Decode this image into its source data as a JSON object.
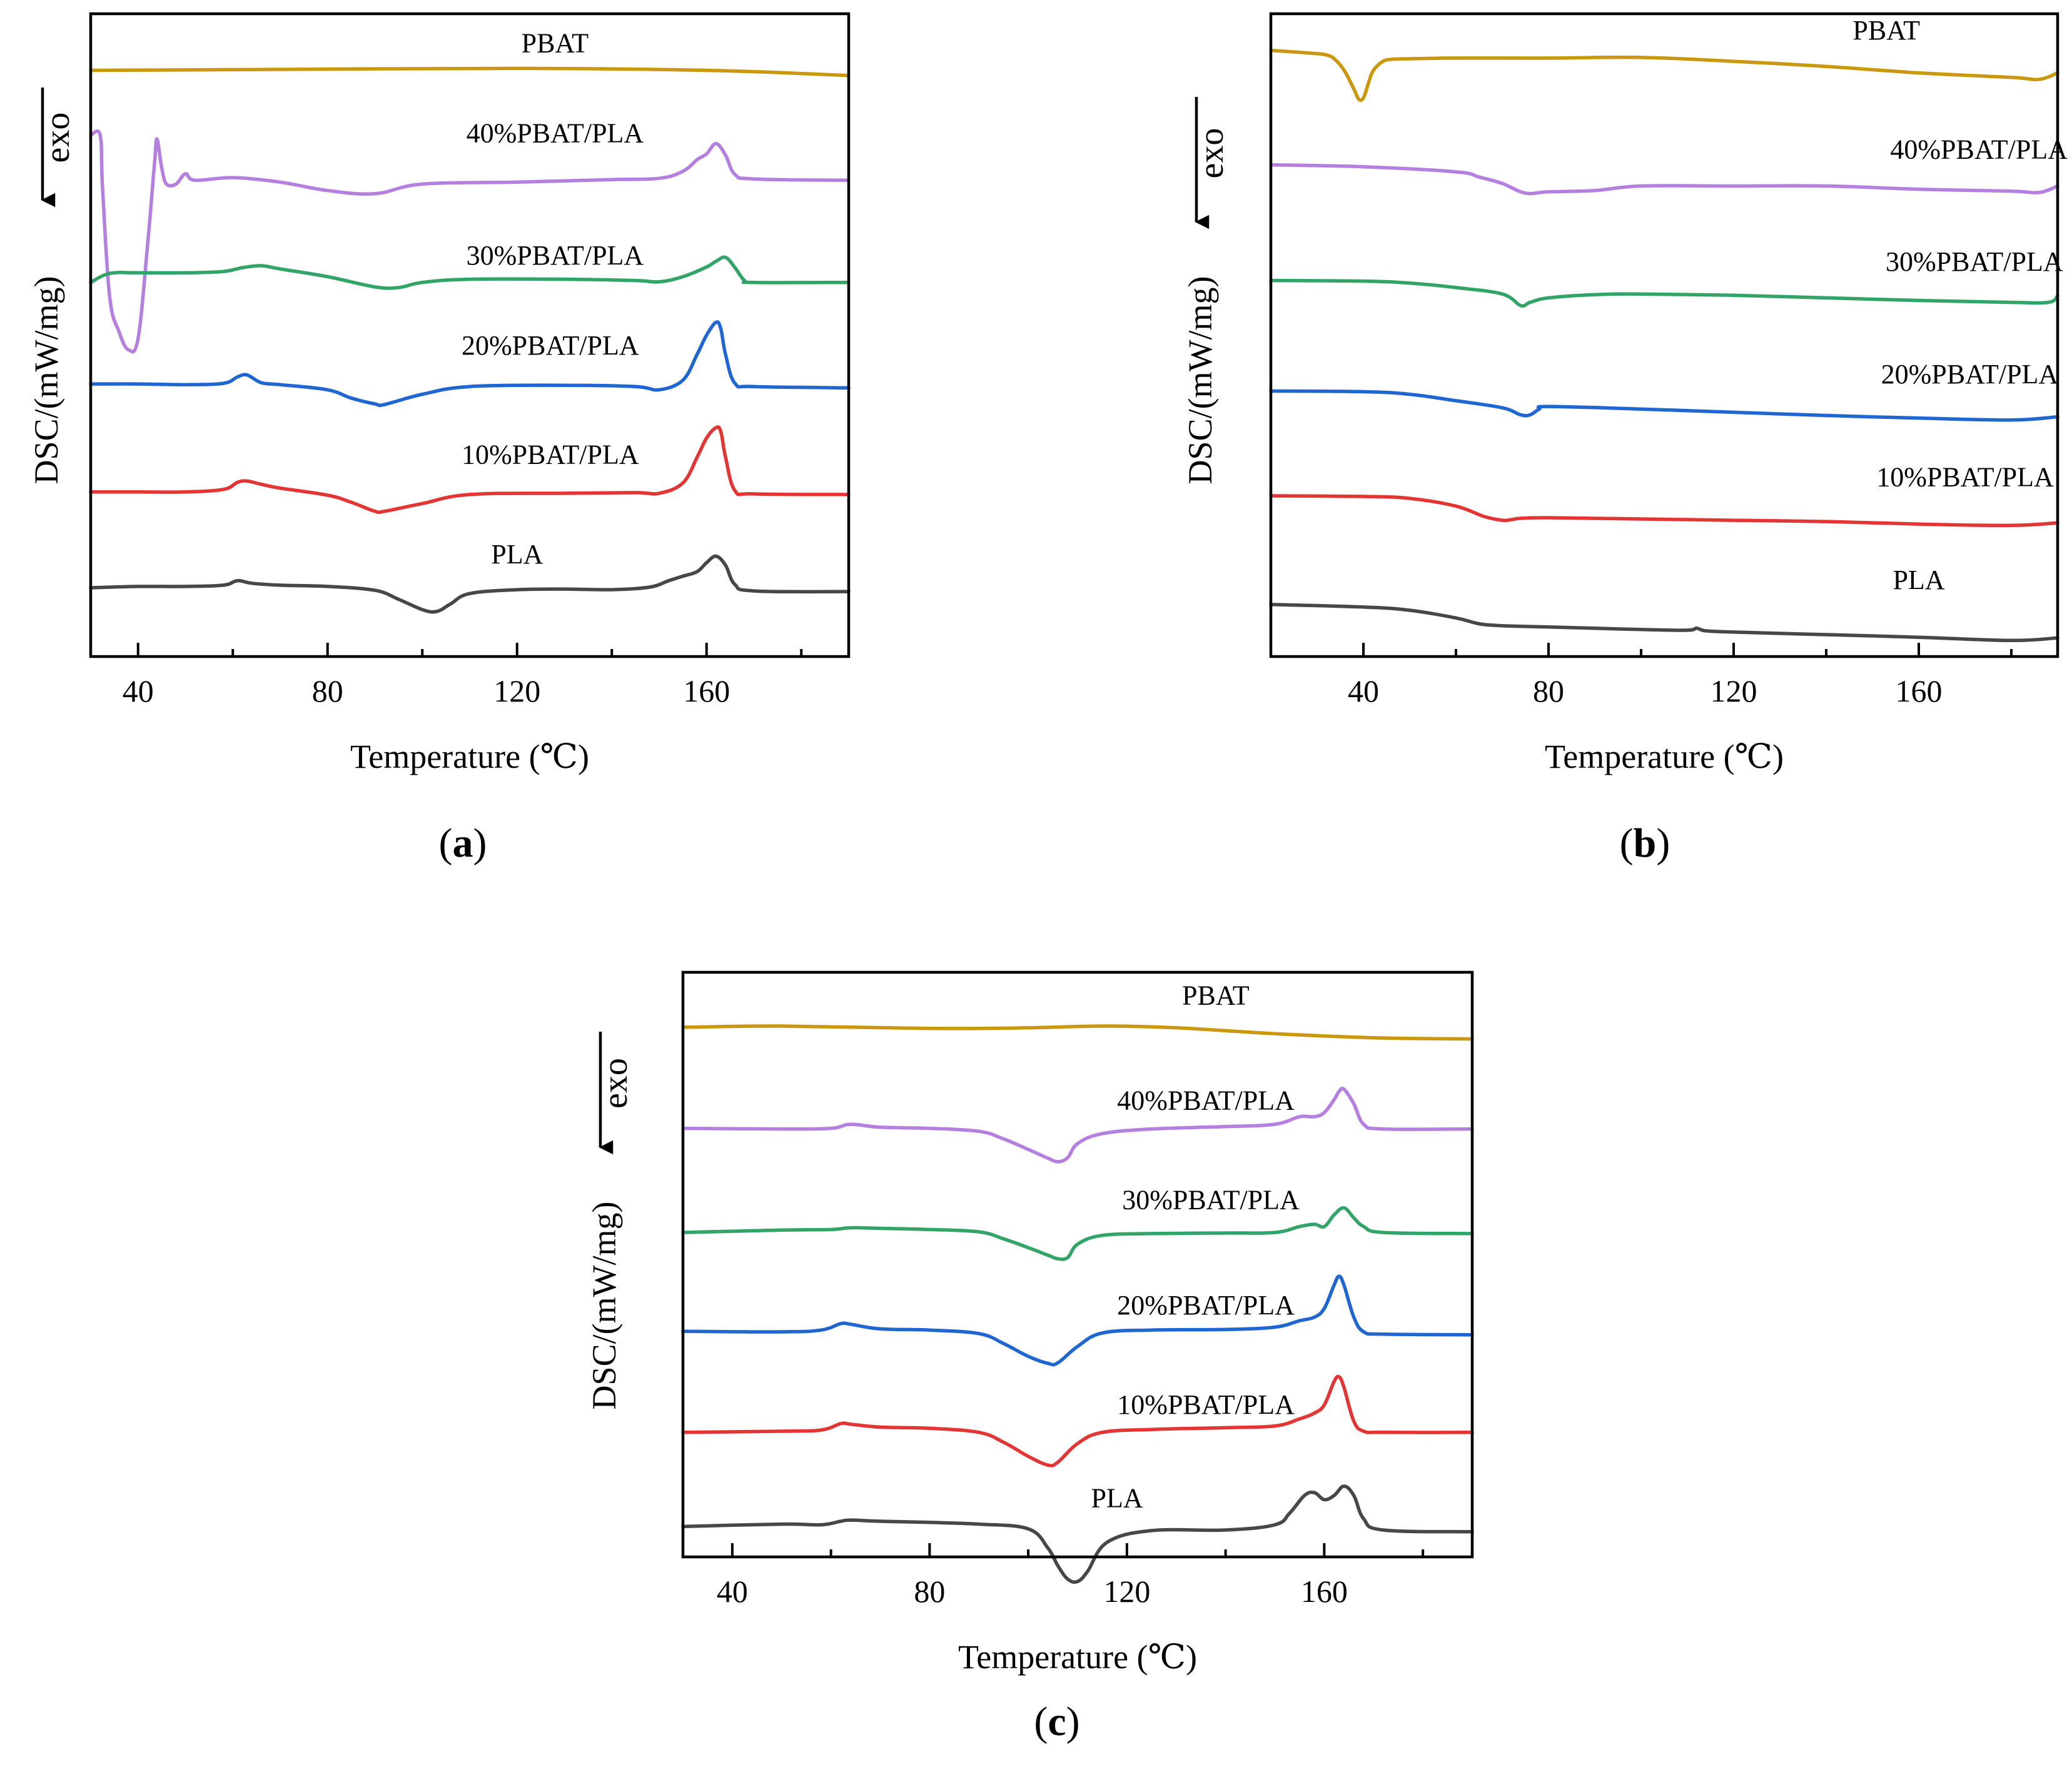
{
  "colors": {
    "PBAT": "#c9980f",
    "40%PBAT/PLA": "#b57fe0",
    "30%PBAT/PLA": "#33a467",
    "20%PBAT/PLA": "#1f66d0",
    "10%PBAT/PLA": "#e43535",
    "PLA": "#474747"
  },
  "chart_data": [
    {
      "id": "a",
      "panel_label": "a",
      "type": "line",
      "xlabel": "Temperature (℃)",
      "ylabel": "DSC/(mW/mg)",
      "exo_label": "exo",
      "exo_direction": "down",
      "xlim": [
        30,
        190
      ],
      "ylim": [
        0,
        100
      ],
      "major_ticks": [
        40,
        80,
        120,
        160
      ],
      "tick_labels": [
        "40",
        "80",
        "120",
        "160"
      ],
      "minor_ticks": [
        60,
        100,
        140,
        180
      ],
      "series": [
        {
          "name": "PBAT",
          "label_x": 128,
          "label_y": 94,
          "x": [
            30,
            60,
            120,
            160,
            190
          ],
          "y": [
            91.2,
            91.3,
            91.5,
            91.2,
            90.4
          ]
        },
        {
          "name": "40%PBAT/PLA",
          "label_x": 128,
          "label_y": 80,
          "x": [
            30,
            32,
            32.5,
            34,
            36,
            38,
            40,
            42,
            43.5,
            44,
            45,
            46,
            48,
            50,
            52,
            60,
            70,
            80,
            90,
            100,
            120,
            140,
            150,
            155,
            158,
            160,
            162,
            164,
            166,
            170,
            190
          ],
          "y": [
            81.1,
            81.1,
            73,
            56,
            50.5,
            47.7,
            49.5,
            64,
            77,
            80.5,
            76,
            73.5,
            73.5,
            75.1,
            74.1,
            74.5,
            73.8,
            72.5,
            72,
            73.5,
            73.8,
            74.2,
            74.4,
            75.5,
            77.3,
            78.2,
            79.8,
            78,
            75,
            74.3,
            74.1
          ]
        },
        {
          "name": "30%PBAT/PLA",
          "label_x": 128,
          "label_y": 61,
          "x": [
            30,
            34,
            40,
            50,
            58,
            62,
            66,
            70,
            80,
            90,
            95,
            100,
            110,
            130,
            145,
            150,
            155,
            160,
            162,
            164,
            166,
            168,
            170,
            190
          ],
          "y": [
            58.2,
            59.6,
            59.7,
            59.7,
            59.9,
            60.5,
            60.8,
            60.3,
            59.1,
            57.5,
            57.4,
            58.2,
            58.7,
            58.7,
            58.5,
            58.3,
            59.1,
            60.6,
            61.5,
            62.1,
            60.5,
            58.5,
            58.2,
            58.2
          ]
        },
        {
          "name": "20%PBAT/PLA",
          "label_x": 127,
          "label_y": 47,
          "x": [
            30,
            40,
            50,
            58,
            61,
            63,
            66,
            70,
            80,
            85,
            90,
            92,
            100,
            110,
            130,
            145,
            150,
            155,
            158,
            160,
            162,
            163,
            164,
            166,
            170,
            190
          ],
          "y": [
            42.4,
            42.4,
            42.3,
            42.5,
            43.5,
            43.8,
            42.6,
            42.3,
            41.5,
            40.2,
            39.3,
            39.2,
            40.8,
            42,
            42.2,
            42,
            41.5,
            43,
            47,
            50,
            52,
            51,
            47,
            42.5,
            42,
            41.8
          ]
        },
        {
          "name": "10%PBAT/PLA",
          "label_x": 127,
          "label_y": 30,
          "x": [
            30,
            40,
            50,
            58,
            61,
            63,
            66,
            70,
            80,
            85,
            90,
            92,
            100,
            110,
            130,
            145,
            150,
            155,
            158,
            160,
            162,
            163,
            164,
            166,
            170,
            190
          ],
          "y": [
            25.6,
            25.6,
            25.6,
            26,
            27.1,
            27.3,
            26.8,
            26.2,
            25.1,
            24,
            22.6,
            22.6,
            23.8,
            25.2,
            25.4,
            25.5,
            25.4,
            27,
            31,
            34,
            35.6,
            35,
            31,
            25.8,
            25.3,
            25.2
          ]
        },
        {
          "name": "PLA",
          "label_x": 120,
          "label_y": 14.5,
          "x": [
            30,
            40,
            50,
            58,
            61,
            64,
            70,
            80,
            90,
            95,
            100,
            103,
            106,
            110,
            120,
            130,
            140,
            148,
            152,
            155,
            158,
            160,
            162,
            164,
            166,
            170,
            190
          ],
          "y": [
            10.7,
            10.9,
            10.9,
            11.1,
            11.8,
            11.4,
            11.1,
            10.9,
            10.3,
            8.9,
            7.3,
            7,
            8.2,
            9.8,
            10.4,
            10.5,
            10.4,
            10.8,
            11.8,
            12.5,
            13.2,
            14.6,
            15.6,
            14.2,
            11.2,
            10.2,
            10.1
          ]
        }
      ]
    },
    {
      "id": "b",
      "panel_label": "b",
      "type": "line",
      "xlabel": "Temperature (℃)",
      "ylabel": "DSC/(mW/mg)",
      "exo_label": "exo",
      "exo_direction": "down",
      "xlim": [
        20,
        190
      ],
      "ylim": [
        0,
        100
      ],
      "major_ticks": [
        40,
        80,
        120,
        160
      ],
      "tick_labels": [
        "40",
        "80",
        "120",
        "160"
      ],
      "minor_ticks": [
        20,
        60,
        100,
        140,
        180
      ],
      "series": [
        {
          "name": "PBAT",
          "label_x": 153,
          "label_y": 96,
          "x": [
            20,
            28,
            32,
            34,
            36,
            38,
            39,
            40,
            41,
            42,
            44,
            46,
            50,
            60,
            80,
            100,
            120,
            140,
            160,
            180,
            186,
            190
          ],
          "y": [
            94.3,
            93.9,
            93.6,
            92.8,
            91,
            88.2,
            86.7,
            86.9,
            89,
            91,
            92.5,
            92.9,
            93,
            93.1,
            93.1,
            93.2,
            92.6,
            91.8,
            90.8,
            90.1,
            89.8,
            90.8
          ]
        },
        {
          "name": "40%PBAT/PLA",
          "label_x": 173,
          "label_y": 77.5,
          "x": [
            20,
            40,
            60,
            65,
            70,
            75,
            80,
            90,
            100,
            120,
            140,
            160,
            180,
            186,
            190
          ],
          "y": [
            76.5,
            76.2,
            75.4,
            74.6,
            73.6,
            72.1,
            72.3,
            72.5,
            73.2,
            73.2,
            73.2,
            72.7,
            72.4,
            72.2,
            73.2
          ]
        },
        {
          "name": "30%PBAT/PLA",
          "label_x": 172,
          "label_y": 60,
          "x": [
            20,
            40,
            50,
            60,
            70,
            74,
            76,
            80,
            90,
            100,
            120,
            140,
            160,
            180,
            188,
            190
          ],
          "y": [
            58.5,
            58.4,
            58.1,
            57.4,
            56.4,
            54.6,
            55.1,
            55.8,
            56.3,
            56.4,
            56.2,
            55.8,
            55.4,
            55.1,
            55.1,
            56.1
          ]
        },
        {
          "name": "20%PBAT/PLA",
          "label_x": 171,
          "label_y": 42.5,
          "x": [
            20,
            40,
            50,
            60,
            70,
            74,
            76,
            78,
            80,
            100,
            120,
            140,
            160,
            180,
            190
          ],
          "y": [
            41.3,
            41.2,
            40.8,
            39.8,
            38.7,
            37.6,
            37.6,
            38.5,
            38.9,
            38.5,
            38,
            37.5,
            37.1,
            36.8,
            37.3
          ]
        },
        {
          "name": "10%PBAT/PLA",
          "label_x": 170,
          "label_y": 26.5,
          "x": [
            20,
            40,
            50,
            60,
            66,
            70,
            72,
            74,
            80,
            100,
            120,
            140,
            160,
            180,
            190
          ],
          "y": [
            25,
            24.9,
            24.6,
            23.4,
            21.8,
            21.2,
            21.3,
            21.5,
            21.6,
            21.4,
            21.2,
            21,
            20.6,
            20.4,
            20.8
          ]
        },
        {
          "name": "PLA",
          "label_x": 160,
          "label_y": 10.5,
          "x": [
            20,
            40,
            50,
            60,
            65,
            70,
            80,
            90,
            100,
            110,
            112,
            114,
            120,
            140,
            160,
            180,
            190
          ],
          "y": [
            8.1,
            7.7,
            7.2,
            6,
            5.1,
            4.8,
            4.6,
            4.4,
            4.2,
            4.1,
            4.4,
            4,
            3.8,
            3.4,
            3,
            2.5,
            2.9
          ]
        }
      ]
    },
    {
      "id": "c",
      "panel_label": "c",
      "type": "line",
      "xlabel": "Temperature (℃)",
      "ylabel": "DSC/(mW/mg)",
      "exo_label": "exo",
      "exo_direction": "down",
      "xlim": [
        30,
        190
      ],
      "ylim": [
        0,
        100
      ],
      "major_ticks": [
        40,
        80,
        120,
        160
      ],
      "tick_labels": [
        "40",
        "80",
        "120",
        "160"
      ],
      "minor_ticks": [
        60,
        100,
        140,
        180
      ],
      "series": [
        {
          "name": "PBAT",
          "label_x": 138,
          "label_y": 94.5,
          "x": [
            30,
            50,
            80,
            100,
            115,
            130,
            150,
            170,
            190
          ],
          "y": [
            90.6,
            90.8,
            90.4,
            90.5,
            90.8,
            90.5,
            89.5,
            88.8,
            88.6
          ]
        },
        {
          "name": "40%PBAT/PLA",
          "label_x": 136,
          "label_y": 76.5,
          "x": [
            30,
            50,
            60,
            64,
            70,
            80,
            90,
            95,
            100,
            104,
            106,
            108,
            110,
            115,
            125,
            140,
            150,
            155,
            158,
            160,
            162,
            163,
            164,
            166,
            168,
            172,
            190
          ],
          "y": [
            73.3,
            73.2,
            73.3,
            74,
            73.5,
            73.3,
            72.8,
            71.5,
            69.7,
            68.2,
            67.6,
            68.3,
            70.7,
            72.4,
            73.2,
            73.6,
            74,
            75.3,
            75.3,
            76,
            78.2,
            79.6,
            80,
            77.5,
            74,
            73.2,
            73.2
          ]
        },
        {
          "name": "30%PBAT/PLA",
          "label_x": 137,
          "label_y": 59.5,
          "x": [
            30,
            50,
            60,
            64,
            70,
            80,
            90,
            95,
            100,
            104,
            106,
            108,
            110,
            115,
            125,
            140,
            150,
            155,
            158,
            160,
            162,
            164,
            166,
            168,
            172,
            190
          ],
          "y": [
            55.5,
            55.9,
            56,
            56.3,
            56.2,
            56,
            55.6,
            54.4,
            52.9,
            51.6,
            51,
            51.2,
            53.5,
            55,
            55.3,
            55.4,
            55.5,
            56.5,
            56.9,
            56.5,
            58.5,
            59.7,
            58,
            56.5,
            55.5,
            55.3
          ]
        },
        {
          "name": "20%PBAT/PLA",
          "label_x": 136,
          "label_y": 41.5,
          "x": [
            30,
            50,
            58,
            62,
            64,
            70,
            80,
            90,
            95,
            100,
            104,
            106,
            110,
            115,
            125,
            140,
            150,
            155,
            158,
            160,
            162,
            163,
            164,
            166,
            168,
            172,
            190
          ],
          "y": [
            38.6,
            38.5,
            38.8,
            39.9,
            39.8,
            39,
            38.8,
            38.2,
            36.5,
            34.3,
            33.1,
            33.2,
            36,
            38.3,
            38.8,
            38.9,
            39.3,
            40.4,
            41,
            42.5,
            46.5,
            48,
            46.5,
            41,
            38.5,
            38.1,
            38
          ]
        },
        {
          "name": "10%PBAT/PLA",
          "label_x": 136,
          "label_y": 24.5,
          "x": [
            30,
            50,
            58,
            62,
            64,
            70,
            80,
            90,
            95,
            100,
            104,
            106,
            110,
            115,
            125,
            140,
            150,
            155,
            158,
            160,
            162,
            163,
            164,
            166,
            168,
            172,
            190
          ],
          "y": [
            21.3,
            21.5,
            21.7,
            22.8,
            22.7,
            22.2,
            22,
            21.3,
            19.6,
            17.2,
            15.7,
            16.2,
            19.4,
            21.3,
            21.8,
            22.1,
            22.4,
            23.6,
            24.6,
            26,
            30,
            30.8,
            29,
            23.2,
            21.5,
            21.3,
            21.3
          ]
        },
        {
          "name": "PLA",
          "label_x": 118,
          "label_y": 8.5,
          "x": [
            30,
            50,
            58,
            62,
            64,
            70,
            80,
            90,
            100,
            104,
            106,
            108,
            110,
            112,
            116,
            125,
            140,
            150,
            153,
            156,
            158,
            160,
            162,
            164,
            166,
            168,
            172,
            190
          ],
          "y": [
            5.2,
            5.6,
            5.5,
            6.1,
            6.3,
            6.1,
            5.9,
            5.6,
            4.8,
            1.5,
            -1.5,
            -3.8,
            -4.2,
            -2.5,
            2.5,
            4.5,
            4.6,
            5.5,
            7.5,
            10.5,
            11,
            9.8,
            10.5,
            12.1,
            10.5,
            6.5,
            4.6,
            4.3
          ]
        }
      ]
    }
  ]
}
